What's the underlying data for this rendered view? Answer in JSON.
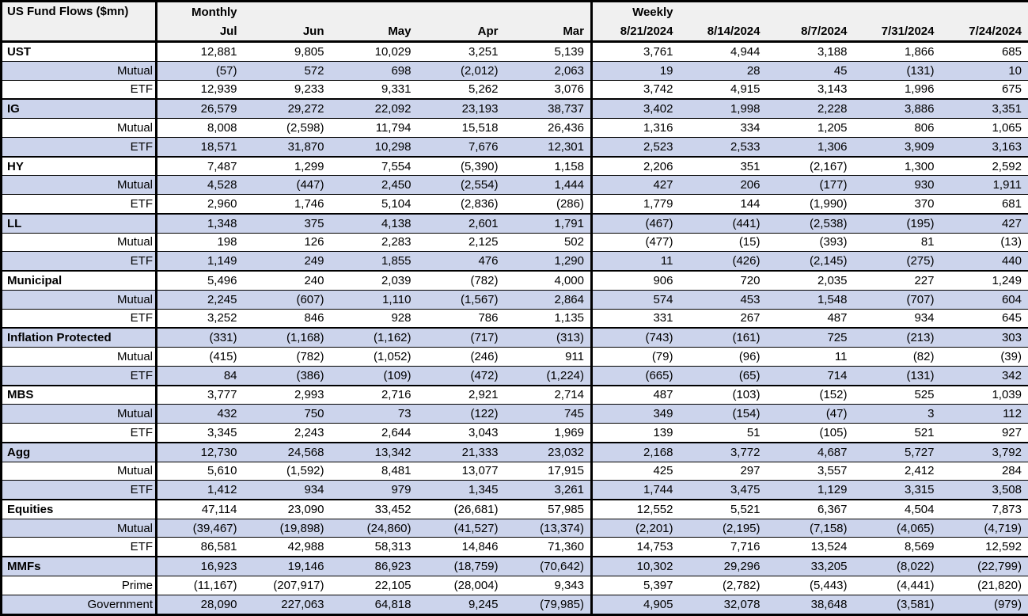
{
  "chart_data": {
    "type": "table",
    "title": "US Fund Flows ($mn)",
    "units": "$mn",
    "number_format": "thousands comma separators, negatives in parentheses",
    "sections": [
      {
        "label": "Monthly",
        "columns": [
          "Jul",
          "Jun",
          "May",
          "Apr",
          "Mar"
        ]
      },
      {
        "label": "Weekly",
        "columns": [
          "8/21/2024",
          "8/14/2024",
          "8/7/2024",
          "7/31/2024",
          "7/24/2024"
        ]
      }
    ],
    "rows": [
      {
        "label": "UST",
        "level": "group",
        "values": [
          12881,
          9805,
          10029,
          3251,
          5139,
          3761,
          4944,
          3188,
          1866,
          685
        ]
      },
      {
        "label": "Mutual",
        "level": "sub",
        "values": [
          -57,
          572,
          698,
          -2012,
          2063,
          19,
          28,
          45,
          -131,
          10
        ]
      },
      {
        "label": "ETF",
        "level": "sub",
        "values": [
          12939,
          9233,
          9331,
          5262,
          3076,
          3742,
          4915,
          3143,
          1996,
          675
        ]
      },
      {
        "label": "IG",
        "level": "group",
        "values": [
          26579,
          29272,
          22092,
          23193,
          38737,
          3402,
          1998,
          2228,
          3886,
          3351
        ]
      },
      {
        "label": "Mutual",
        "level": "sub",
        "values": [
          8008,
          -2598,
          11794,
          15518,
          26436,
          1316,
          334,
          1205,
          806,
          1065
        ]
      },
      {
        "label": "ETF",
        "level": "sub",
        "values": [
          18571,
          31870,
          10298,
          7676,
          12301,
          2523,
          2533,
          1306,
          3909,
          3163
        ]
      },
      {
        "label": "HY",
        "level": "group",
        "values": [
          7487,
          1299,
          7554,
          -5390,
          1158,
          2206,
          351,
          -2167,
          1300,
          2592
        ]
      },
      {
        "label": "Mutual",
        "level": "sub",
        "values": [
          4528,
          -447,
          2450,
          -2554,
          1444,
          427,
          206,
          -177,
          930,
          1911
        ]
      },
      {
        "label": "ETF",
        "level": "sub",
        "values": [
          2960,
          1746,
          5104,
          -2836,
          -286,
          1779,
          144,
          -1990,
          370,
          681
        ]
      },
      {
        "label": "LL",
        "level": "group",
        "values": [
          1348,
          375,
          4138,
          2601,
          1791,
          -467,
          -441,
          -2538,
          -195,
          427
        ]
      },
      {
        "label": "Mutual",
        "level": "sub",
        "values": [
          198,
          126,
          2283,
          2125,
          502,
          -477,
          -15,
          -393,
          81,
          -13
        ]
      },
      {
        "label": "ETF",
        "level": "sub",
        "values": [
          1149,
          249,
          1855,
          476,
          1290,
          11,
          -426,
          -2145,
          -275,
          440
        ]
      },
      {
        "label": "Municipal",
        "level": "group",
        "values": [
          5496,
          240,
          2039,
          -782,
          4000,
          906,
          720,
          2035,
          227,
          1249
        ]
      },
      {
        "label": "Mutual",
        "level": "sub",
        "values": [
          2245,
          -607,
          1110,
          -1567,
          2864,
          574,
          453,
          1548,
          -707,
          604
        ]
      },
      {
        "label": "ETF",
        "level": "sub",
        "values": [
          3252,
          846,
          928,
          786,
          1135,
          331,
          267,
          487,
          934,
          645
        ]
      },
      {
        "label": "Inflation Protected",
        "level": "group",
        "values": [
          -331,
          -1168,
          -1162,
          -717,
          -313,
          -743,
          -161,
          725,
          -213,
          303
        ]
      },
      {
        "label": "Mutual",
        "level": "sub",
        "values": [
          -415,
          -782,
          -1052,
          -246,
          911,
          -79,
          -96,
          11,
          -82,
          -39
        ]
      },
      {
        "label": "ETF",
        "level": "sub",
        "values": [
          84,
          -386,
          -109,
          -472,
          -1224,
          -665,
          -65,
          714,
          -131,
          342
        ]
      },
      {
        "label": "MBS",
        "level": "group",
        "values": [
          3777,
          2993,
          2716,
          2921,
          2714,
          487,
          -103,
          -152,
          525,
          1039
        ]
      },
      {
        "label": "Mutual",
        "level": "sub",
        "values": [
          432,
          750,
          73,
          -122,
          745,
          349,
          -154,
          -47,
          3,
          112
        ]
      },
      {
        "label": "ETF",
        "level": "sub",
        "values": [
          3345,
          2243,
          2644,
          3043,
          1969,
          139,
          51,
          -105,
          521,
          927
        ]
      },
      {
        "label": "Agg",
        "level": "group",
        "values": [
          12730,
          24568,
          13342,
          21333,
          23032,
          2168,
          3772,
          4687,
          5727,
          3792
        ]
      },
      {
        "label": "Mutual",
        "level": "sub",
        "values": [
          5610,
          -1592,
          8481,
          13077,
          17915,
          425,
          297,
          3557,
          2412,
          284
        ]
      },
      {
        "label": "ETF",
        "level": "sub",
        "values": [
          1412,
          934,
          979,
          1345,
          3261,
          1744,
          3475,
          1129,
          3315,
          3508
        ]
      },
      {
        "label": "Equities",
        "level": "group",
        "values": [
          47114,
          23090,
          33452,
          -26681,
          57985,
          12552,
          5521,
          6367,
          4504,
          7873
        ]
      },
      {
        "label": "Mutual",
        "level": "sub",
        "values": [
          -39467,
          -19898,
          -24860,
          -41527,
          -13374,
          -2201,
          -2195,
          -7158,
          -4065,
          -4719
        ]
      },
      {
        "label": "ETF",
        "level": "sub",
        "values": [
          86581,
          42988,
          58313,
          14846,
          71360,
          14753,
          7716,
          13524,
          8569,
          12592
        ]
      },
      {
        "label": "MMFs",
        "level": "group",
        "values": [
          16923,
          19146,
          86923,
          -18759,
          -70642,
          10302,
          29296,
          33205,
          -8022,
          -22799
        ]
      },
      {
        "label": "Prime",
        "level": "sub",
        "values": [
          -11167,
          -207917,
          22105,
          -28004,
          9343,
          5397,
          -2782,
          -5443,
          -4441,
          -21820
        ]
      },
      {
        "label": "Government",
        "level": "sub",
        "values": [
          28090,
          227063,
          64818,
          9245,
          -79985,
          4905,
          32078,
          38648,
          -3581,
          -979
        ]
      }
    ],
    "layout": {
      "stripe_color": "#ccd4ec",
      "header_bg": "#f0f0f0",
      "border_color": "#000000",
      "text_color": "#000000",
      "stripes": "alternating rows, first data row white"
    }
  }
}
